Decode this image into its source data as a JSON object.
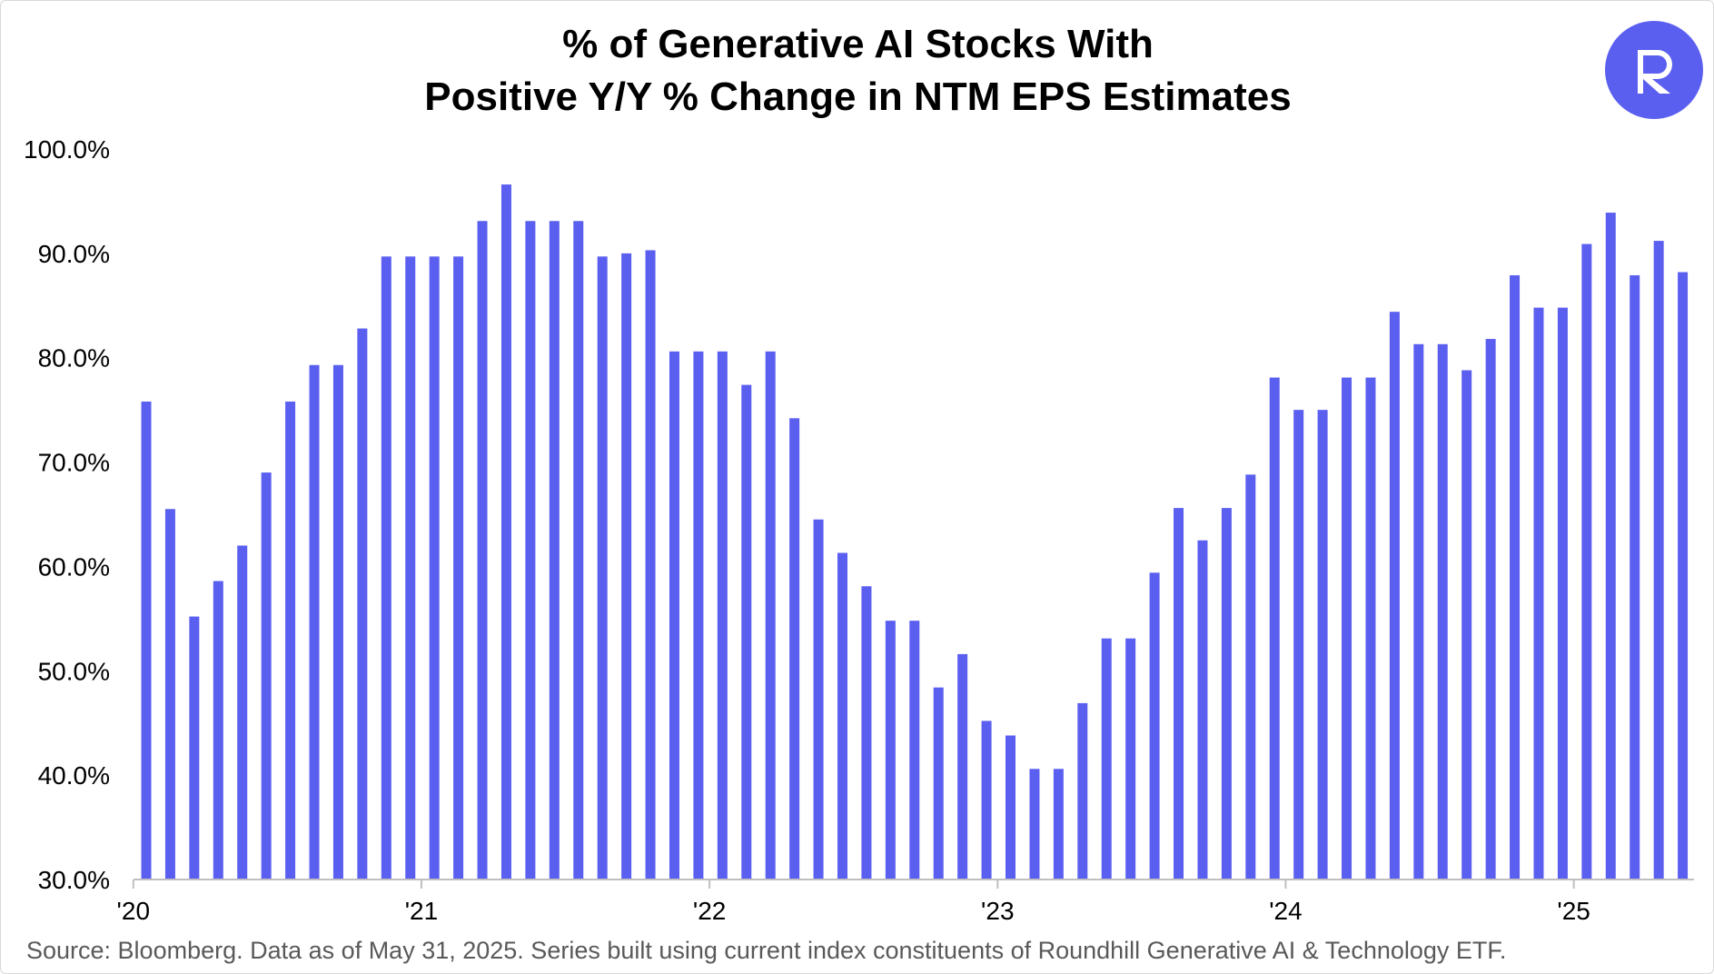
{
  "chart_data": {
    "type": "bar",
    "title_lines": [
      "% of Generative AI Stocks With",
      "Positive Y/Y % Change in NTM EPS Estimates"
    ],
    "source": "Source: Bloomberg. Data as of May 31, 2025. Series built using current index constituents of Roundhill Generative AI & Technology ETF.",
    "bar_color": "#5b5ff0",
    "ylim": [
      30,
      100
    ],
    "y_ticks": [
      100,
      90,
      80,
      70,
      60,
      50,
      40,
      30
    ],
    "y_tick_labels": [
      "100.0%",
      "90.0%",
      "80.0%",
      "70.0%",
      "60.0%",
      "50.0%",
      "40.0%",
      "30.0%"
    ],
    "x_tick_labels": [
      "'20",
      "'21",
      "'22",
      "'23",
      "'24",
      "'25"
    ],
    "x_tick_indices": [
      0,
      12,
      24,
      36,
      48,
      60
    ],
    "grid": false,
    "categories": [
      "Jan 2020",
      "Feb 2020",
      "Mar 2020",
      "Apr 2020",
      "May 2020",
      "Jun 2020",
      "Jul 2020",
      "Aug 2020",
      "Sep 2020",
      "Oct 2020",
      "Nov 2020",
      "Dec 2020",
      "Jan 2021",
      "Feb 2021",
      "Mar 2021",
      "Apr 2021",
      "May 2021",
      "Jun 2021",
      "Jul 2021",
      "Aug 2021",
      "Sep 2021",
      "Oct 2021",
      "Nov 2021",
      "Dec 2021",
      "Jan 2022",
      "Feb 2022",
      "Mar 2022",
      "Apr 2022",
      "May 2022",
      "Jun 2022",
      "Jul 2022",
      "Aug 2022",
      "Sep 2022",
      "Oct 2022",
      "Nov 2022",
      "Dec 2022",
      "Jan 2023",
      "Feb 2023",
      "Mar 2023",
      "Apr 2023",
      "May 2023",
      "Jun 2023",
      "Jul 2023",
      "Aug 2023",
      "Sep 2023",
      "Oct 2023",
      "Nov 2023",
      "Dec 2023",
      "Jan 2024",
      "Feb 2024",
      "Mar 2024",
      "Apr 2024",
      "May 2024",
      "Jun 2024",
      "Jul 2024",
      "Aug 2024",
      "Sep 2024",
      "Oct 2024",
      "Nov 2024",
      "Dec 2024",
      "Jan 2025",
      "Feb 2025",
      "Mar 2025",
      "Apr 2025",
      "May 2025"
    ],
    "values": [
      75.8,
      65.5,
      55.2,
      58.6,
      62.0,
      69.0,
      75.8,
      79.3,
      79.3,
      82.8,
      89.7,
      89.7,
      89.7,
      89.7,
      93.1,
      96.6,
      93.1,
      93.1,
      93.1,
      89.7,
      90.0,
      90.3,
      80.6,
      80.6,
      80.6,
      77.4,
      80.6,
      74.2,
      64.5,
      61.3,
      58.1,
      54.8,
      54.8,
      48.4,
      51.6,
      45.2,
      43.8,
      40.6,
      40.6,
      46.9,
      53.1,
      53.1,
      59.4,
      65.6,
      62.5,
      65.6,
      68.8,
      78.1,
      75.0,
      75.0,
      78.1,
      78.1,
      84.4,
      81.3,
      81.3,
      78.8,
      81.8,
      87.9,
      84.8,
      84.8,
      90.9,
      93.9,
      87.9,
      91.2,
      88.2
    ]
  }
}
